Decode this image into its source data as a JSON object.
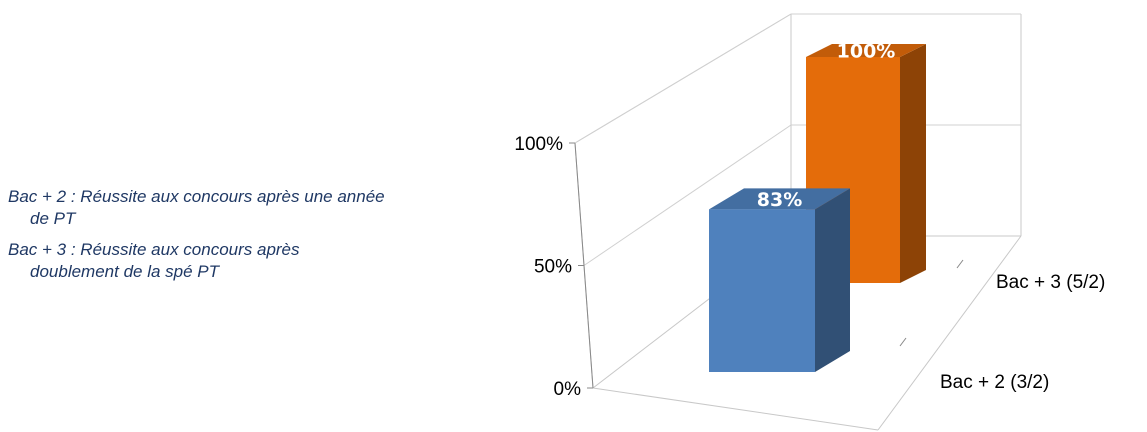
{
  "notes": [
    "Bac + 2 : Réussite aux concours après une année de PT",
    "Bac + 3 : Réussite aux concours après doublement de la spé PT"
  ],
  "chart_data": {
    "type": "bar",
    "style": "3d-column",
    "categories": [
      "Bac + 2 (3/2)",
      "Bac + 3 (5/2)"
    ],
    "values": [
      0.83,
      1.0
    ],
    "value_labels": [
      "83%",
      "100%"
    ],
    "y_ticks": [
      "0%",
      "50%",
      "100%"
    ],
    "ylim": [
      0,
      1.0
    ],
    "grid": true,
    "colors": {
      "Bac + 2 (3/2)": "#4F81BD",
      "Bac + 3 (5/2)": "#E46C0A"
    }
  }
}
